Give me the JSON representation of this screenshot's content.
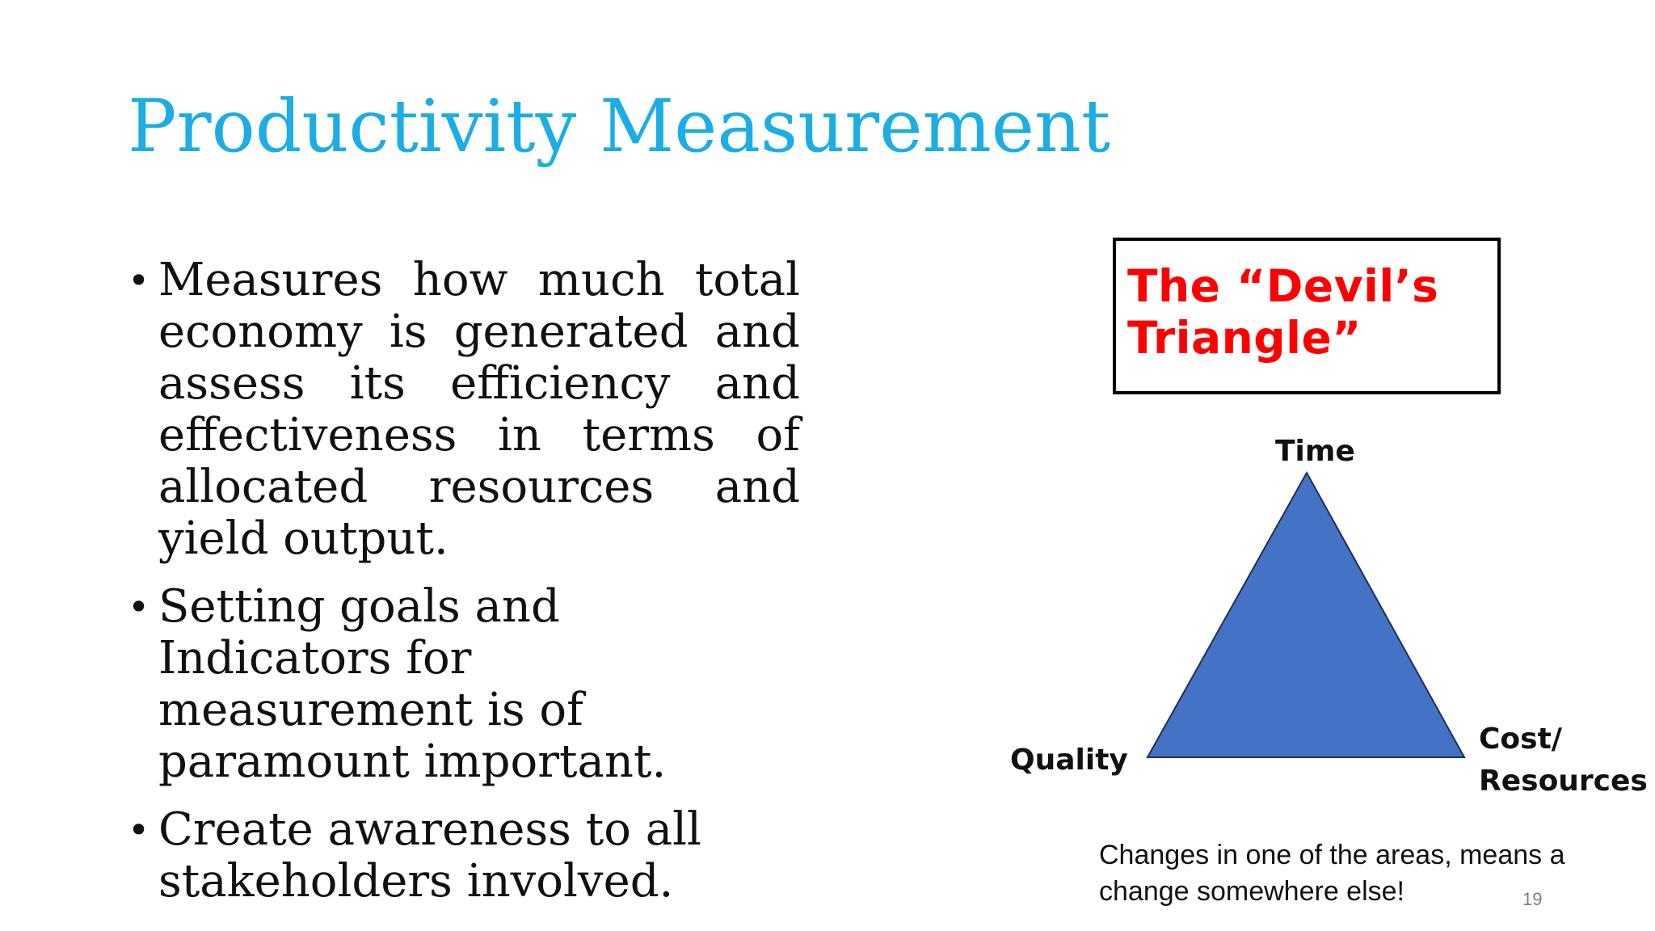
{
  "slide": {
    "title": "Productivity Measurement",
    "bullets": [
      "Measures how much total economy is generated and assess its efficiency and effectiveness in terms of allocated resources and yield output.",
      "Setting goals and Indicators for measurement is of paramount important.",
      "Create awareness to all stakeholders involved."
    ],
    "devil_box": {
      "line1": "The “Devil’s",
      "line2": "Triangle”"
    },
    "triangle": {
      "top_label": "Time",
      "left_label": "Quality",
      "right_label_line1": "Cost/",
      "right_label_line2": "Resources"
    },
    "caption_line1": "Changes in one of the areas, means a",
    "caption_line2": "change somewhere else!",
    "page_number": "19"
  },
  "colors": {
    "title": "#1cade4",
    "devil_title": "#ff0000",
    "triangle_fill": "#4472c4"
  }
}
